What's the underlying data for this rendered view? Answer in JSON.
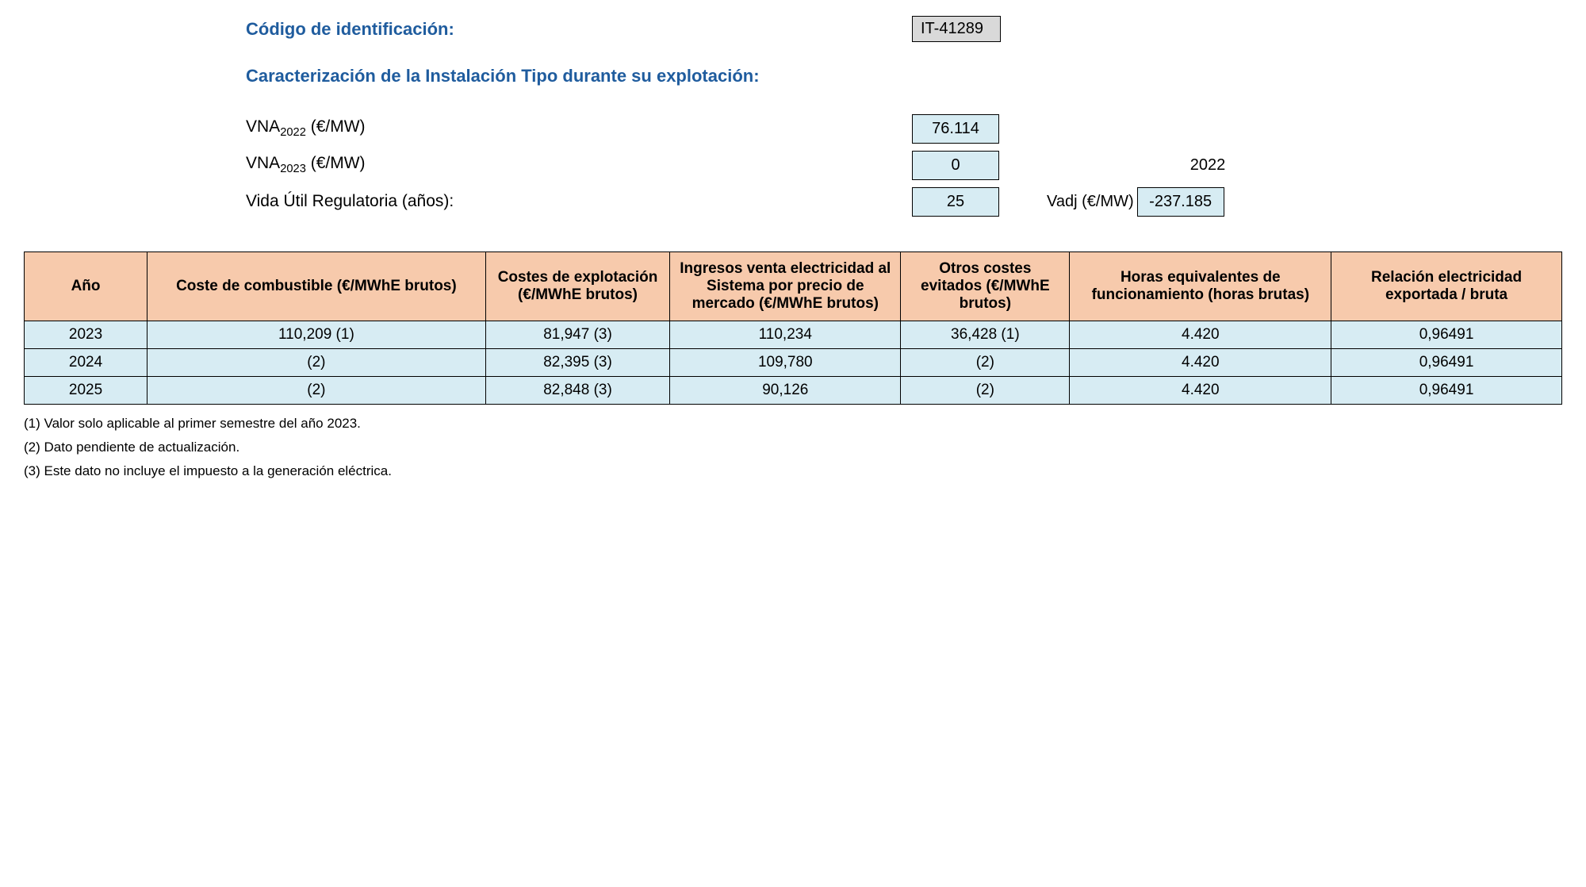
{
  "header": {
    "id_label": "Código de identificación:",
    "id_value": "IT-41289",
    "section_title": "Caracterización de la Instalación Tipo durante su explotación:",
    "params": {
      "vna2022_label_pre": "VNA",
      "vna2022_sub": "2022",
      "vna2022_label_post": " (€/MW)",
      "vna2022_value": "76.114",
      "vna2023_label_pre": "VNA",
      "vna2023_sub": "2023",
      "vna2023_label_post": " (€/MW)",
      "vna2023_value": "0",
      "vida_label": "Vida Útil Regulatoria (años):",
      "vida_value": "25",
      "vadj_year": "2022",
      "vadj_label": "Vadj (€/MW)",
      "vadj_value": "-237.185"
    }
  },
  "table": {
    "columns": [
      "Año",
      "Coste de combustible (€/MWhE brutos)",
      "Costes de explotación (€/MWhE brutos)",
      "Ingresos venta electricidad al Sistema por precio de mercado (€/MWhE brutos)",
      "Otros costes evitados (€/MWhE brutos)",
      "Horas equivalentes de funcionamiento (horas brutas)",
      "Relación electricidad exportada / bruta"
    ],
    "rows": [
      [
        "2023",
        "110,209 (1)",
        "81,947 (3)",
        "110,234",
        "36,428 (1)",
        "4.420",
        "0,96491"
      ],
      [
        "2024",
        "(2)",
        "82,395 (3)",
        "109,780",
        "(2)",
        "4.420",
        "0,96491"
      ],
      [
        "2025",
        "(2)",
        "82,848 (3)",
        "90,126",
        "(2)",
        "4.420",
        "0,96491"
      ]
    ],
    "header_bg": "#f7caac",
    "row_bg": "#d7ecf3",
    "border_color": "#000000"
  },
  "footnotes": [
    "(1) Valor solo aplicable al primer semestre del año 2023.",
    "(2) Dato pendiente de actualización.",
    "(3) Este dato no incluye el impuesto a la generación eléctrica."
  ]
}
